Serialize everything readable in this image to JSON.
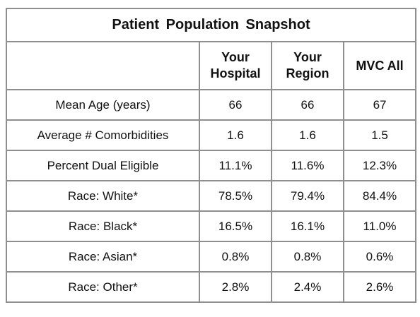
{
  "title": "Patient Population Snapshot",
  "table": {
    "columns": [
      "Your Hospital",
      "Your Region",
      "MVC All"
    ],
    "rows": [
      [
        "Mean Age (years)",
        "66",
        "66",
        "67"
      ],
      [
        "Average # Comorbidities",
        "1.6",
        "1.6",
        "1.5"
      ],
      [
        "Percent Dual Eligible",
        "11.1%",
        "11.6%",
        "12.3%"
      ],
      [
        "Race: White*",
        "78.5%",
        "79.4%",
        "84.4%"
      ],
      [
        "Race: Black*",
        "16.5%",
        "16.1%",
        "11.0%"
      ],
      [
        "Race: Asian*",
        "0.8%",
        "0.8%",
        "0.6%"
      ],
      [
        "Race: Other*",
        "2.8%",
        "2.4%",
        "2.6%"
      ]
    ]
  }
}
